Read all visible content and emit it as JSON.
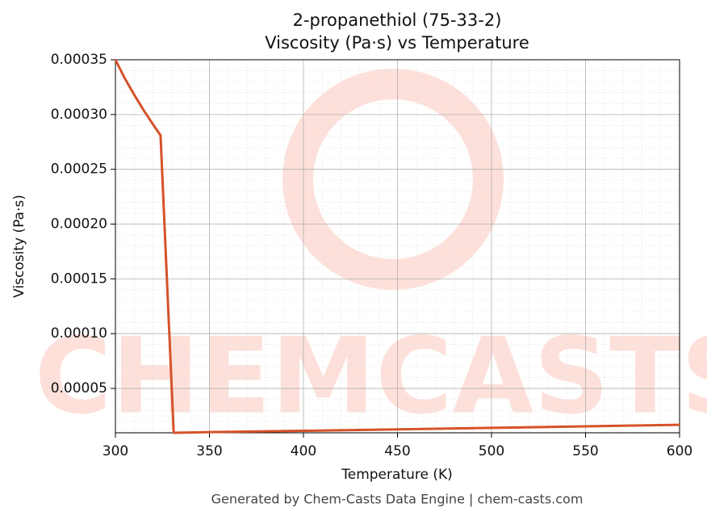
{
  "chart_data": {
    "type": "line",
    "title": "2-propanethiol (75-33-2)",
    "subtitle": "Viscosity (Pa·s) vs Temperature",
    "x_label": "Temperature (K)",
    "y_label": "Viscosity (Pa·s)",
    "footer": "Generated by Chem-Casts Data Engine | chem-casts.com",
    "watermark": "CHEMCASTS",
    "x": [
      300,
      305,
      310,
      315,
      320,
      324,
      331,
      350,
      400,
      450,
      500,
      550,
      600
    ],
    "series": [
      {
        "name": "Viscosity",
        "color": "#d6522a",
        "values": [
          0.00035,
          0.000333,
          0.000318,
          0.000304,
          0.000291,
          0.000281,
          9.5e-06,
          1.01e-05,
          1.13e-05,
          1.26e-05,
          1.4e-05,
          1.54e-05,
          1.68e-05
        ]
      }
    ],
    "xlim": [
      300,
      600
    ],
    "xticks": [
      300,
      350,
      400,
      450,
      500,
      550,
      600
    ],
    "ylim": [
      9.5e-06,
      0.00035
    ],
    "yticks": [
      5e-05,
      {
        "value": 0.0001,
        "label": "0.00010"
      },
      0.00015,
      {
        "value": 0.0002,
        "label": "0.00020"
      },
      0.00025,
      {
        "value": 0.0003,
        "label": "0.00030"
      },
      0.00035
    ],
    "grid": true
  }
}
